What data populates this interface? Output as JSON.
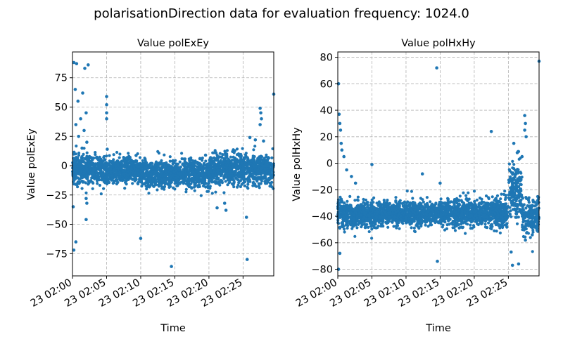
{
  "figure": {
    "title": "polarisationDirection data for evaluation frequency: 1024.0"
  },
  "chart_data": [
    {
      "type": "scatter",
      "title": "Value polExEy",
      "xlabel": "Time",
      "ylabel": "Value polExEy",
      "grid": true,
      "color": "#1f77b4",
      "x_ticks": [
        "23 02:00",
        "23 02:05",
        "23 02:10",
        "23 02:15",
        "23 02:20",
        "23 02:25"
      ],
      "xlim_minutes": [
        0,
        29.5
      ],
      "ylim": [
        -94,
        97
      ],
      "y_ticks": [
        -75,
        -50,
        -25,
        0,
        25,
        50,
        75
      ],
      "density_bands": [
        {
          "x_range": [
            0,
            5
          ],
          "center": -3,
          "spread": 8
        },
        {
          "x_range": [
            5,
            10
          ],
          "center": -4,
          "spread": 7
        },
        {
          "x_range": [
            10,
            20
          ],
          "center": -7,
          "spread": 8
        },
        {
          "x_range": [
            20,
            29.5
          ],
          "center": -3,
          "spread": 9
        }
      ],
      "outliers": [
        {
          "x": 0.2,
          "y": 88
        },
        {
          "x": 0.6,
          "y": 87
        },
        {
          "x": 1.8,
          "y": 83
        },
        {
          "x": 2.3,
          "y": 86
        },
        {
          "x": 0.4,
          "y": 65
        },
        {
          "x": 1.5,
          "y": 62
        },
        {
          "x": 0.8,
          "y": 55
        },
        {
          "x": 2.0,
          "y": 45
        },
        {
          "x": 1.2,
          "y": 40
        },
        {
          "x": 0.5,
          "y": 35
        },
        {
          "x": 1.7,
          "y": 30
        },
        {
          "x": 0.9,
          "y": 25
        },
        {
          "x": 2.1,
          "y": 20
        },
        {
          "x": 1.4,
          "y": 15
        },
        {
          "x": 5.0,
          "y": 59
        },
        {
          "x": 5.0,
          "y": 52
        },
        {
          "x": 5.0,
          "y": 45
        },
        {
          "x": 5.0,
          "y": 40
        },
        {
          "x": 5.1,
          "y": 14
        },
        {
          "x": 0.1,
          "y": -35
        },
        {
          "x": 2.0,
          "y": -28
        },
        {
          "x": 2.1,
          "y": -32
        },
        {
          "x": 2.0,
          "y": -46
        },
        {
          "x": 0.5,
          "y": -65
        },
        {
          "x": 0.2,
          "y": -72
        },
        {
          "x": 10.0,
          "y": -62
        },
        {
          "x": 14.5,
          "y": -86
        },
        {
          "x": 21.2,
          "y": -36
        },
        {
          "x": 22.3,
          "y": -32
        },
        {
          "x": 22.5,
          "y": -38
        },
        {
          "x": 25.5,
          "y": -44
        },
        {
          "x": 25.6,
          "y": -80
        },
        {
          "x": 27.5,
          "y": 49
        },
        {
          "x": 27.6,
          "y": 45
        },
        {
          "x": 27.7,
          "y": 40
        },
        {
          "x": 27.5,
          "y": 35
        },
        {
          "x": 29.5,
          "y": 61
        },
        {
          "x": 26.0,
          "y": 24
        },
        {
          "x": 26.8,
          "y": 22
        },
        {
          "x": 28.0,
          "y": 21
        },
        {
          "x": 19.5,
          "y": 9
        }
      ]
    },
    {
      "type": "scatter",
      "title": "Value polHxHy",
      "xlabel": "Time",
      "ylabel": "Value polHxHy",
      "grid": true,
      "color": "#1f77b4",
      "x_ticks": [
        "23 02:00",
        "23 02:05",
        "23 02:10",
        "23 02:15",
        "23 02:20",
        "23 02:25"
      ],
      "xlim_minutes": [
        0,
        29.5
      ],
      "ylim": [
        -85,
        84
      ],
      "y_ticks": [
        -80,
        -60,
        -40,
        -20,
        0,
        20,
        40,
        60,
        80
      ],
      "density_bands": [
        {
          "x_range": [
            0,
            5
          ],
          "center": -38,
          "spread": 7
        },
        {
          "x_range": [
            5,
            15
          ],
          "center": -38,
          "spread": 6
        },
        {
          "x_range": [
            15,
            25
          ],
          "center": -37,
          "spread": 7
        },
        {
          "x_range": [
            25,
            27
          ],
          "center": -20,
          "spread": 14
        },
        {
          "x_range": [
            27,
            29.5
          ],
          "center": -40,
          "spread": 8
        }
      ],
      "outliers": [
        {
          "x": 0.1,
          "y": 60
        },
        {
          "x": 0.2,
          "y": 37
        },
        {
          "x": 0.3,
          "y": 30
        },
        {
          "x": 0.4,
          "y": 25
        },
        {
          "x": 0.5,
          "y": 15
        },
        {
          "x": 0.6,
          "y": 10
        },
        {
          "x": 0.9,
          "y": 5
        },
        {
          "x": 1.3,
          "y": -5
        },
        {
          "x": 2.0,
          "y": -10
        },
        {
          "x": 2.6,
          "y": -15
        },
        {
          "x": 0.3,
          "y": -68
        },
        {
          "x": 0.1,
          "y": -80
        },
        {
          "x": 5.0,
          "y": -1
        },
        {
          "x": 14.5,
          "y": 72
        },
        {
          "x": 14.6,
          "y": -74
        },
        {
          "x": 12.4,
          "y": -8
        },
        {
          "x": 15.0,
          "y": -15
        },
        {
          "x": 22.5,
          "y": 24
        },
        {
          "x": 25.4,
          "y": -67
        },
        {
          "x": 25.6,
          "y": -77
        },
        {
          "x": 26.5,
          "y": -76
        },
        {
          "x": 27.4,
          "y": 36
        },
        {
          "x": 27.5,
          "y": 30
        },
        {
          "x": 27.4,
          "y": 25
        },
        {
          "x": 27.6,
          "y": 20
        },
        {
          "x": 27.0,
          "y": 5
        },
        {
          "x": 26.3,
          "y": 8
        },
        {
          "x": 25.8,
          "y": 15
        },
        {
          "x": 29.5,
          "y": 77
        },
        {
          "x": 27.5,
          "y": -58
        },
        {
          "x": 28.5,
          "y": -54
        }
      ]
    }
  ]
}
